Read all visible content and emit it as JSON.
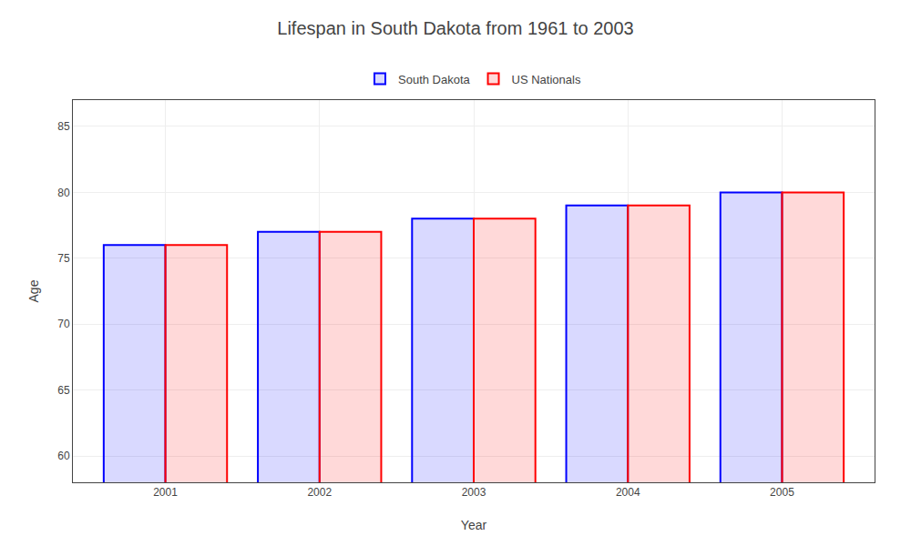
{
  "chart_data": {
    "type": "bar",
    "title": "Lifespan in South Dakota from 1961 to 2003",
    "xlabel": "Year",
    "ylabel": "Age",
    "categories": [
      "2001",
      "2002",
      "2003",
      "2004",
      "2005"
    ],
    "series": [
      {
        "name": "South Dakota",
        "color": "#0000ff",
        "values": [
          76,
          77,
          78,
          79,
          80
        ]
      },
      {
        "name": "US Nationals",
        "color": "#ff0000",
        "values": [
          76,
          77,
          78,
          79,
          80
        ]
      }
    ],
    "ylim": [
      58,
      87
    ],
    "yticks": [
      60,
      65,
      70,
      75,
      80,
      85
    ],
    "grid": true,
    "legend": "top"
  }
}
